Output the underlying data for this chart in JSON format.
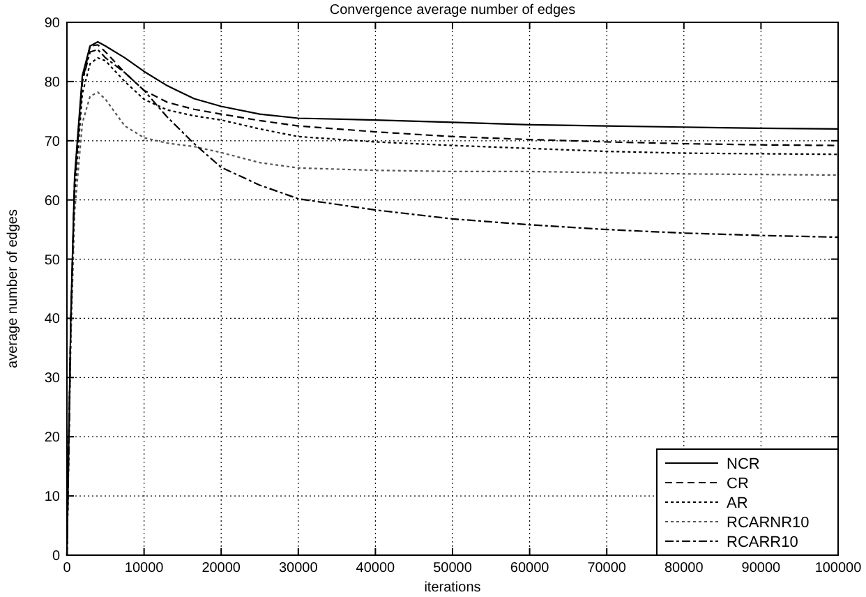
{
  "chart_data": {
    "type": "line",
    "title": "Convergence average number of edges",
    "xlabel": "iterations",
    "ylabel": "average number of edges",
    "xlim": [
      0,
      100000
    ],
    "ylim": [
      0,
      90
    ],
    "xticks": [
      0,
      10000,
      20000,
      30000,
      40000,
      50000,
      60000,
      70000,
      80000,
      90000,
      100000
    ],
    "yticks": [
      0,
      10,
      20,
      30,
      40,
      50,
      60,
      70,
      80,
      90
    ],
    "grid": true,
    "legend": "bottom right",
    "x": [
      0,
      500,
      1000,
      2000,
      3000,
      4000,
      5000,
      7500,
      10000,
      13000,
      16500,
      20000,
      25000,
      30000,
      40000,
      50000,
      60000,
      70000,
      80000,
      90000,
      100000
    ],
    "series": [
      {
        "name": "NCR",
        "color": "#000000",
        "line_style": "solid",
        "values": [
          0,
          40,
          64,
          81,
          86,
          86.7,
          86,
          84,
          81.7,
          79.3,
          77.1,
          75.8,
          74.5,
          73.8,
          73.5,
          73.1,
          72.7,
          72.5,
          72.3,
          72.1,
          72.0
        ]
      },
      {
        "name": "CR",
        "color": "#000000",
        "line_style": "dashed",
        "values": [
          0,
          39,
          63,
          80,
          86,
          86.2,
          85,
          81.5,
          78.5,
          76.5,
          75.3,
          74.5,
          73.4,
          72.5,
          71.5,
          70.7,
          70.2,
          69.8,
          69.5,
          69.3,
          69.2
        ]
      },
      {
        "name": "AR",
        "color": "#000000",
        "line_style": "dotted",
        "values": [
          0,
          38,
          61,
          78,
          83,
          84,
          83.5,
          80,
          77,
          75.2,
          74.2,
          73.5,
          72,
          70.7,
          69.8,
          69.2,
          68.7,
          68.2,
          67.9,
          67.8,
          67.7
        ]
      },
      {
        "name": "RCARNR10",
        "color": "#555555",
        "line_style": "dotted",
        "values": [
          0,
          36,
          58,
          73,
          77.5,
          78.2,
          77,
          72.5,
          70.5,
          69.6,
          69,
          68,
          66.3,
          65.4,
          65.0,
          64.8,
          64.8,
          64.6,
          64.4,
          64.3,
          64.2
        ]
      },
      {
        "name": "RCARR10",
        "color": "#000000",
        "line_style": "dashdot",
        "values": [
          0,
          39,
          63,
          80,
          85,
          85.4,
          84,
          81.5,
          78.5,
          74,
          69.5,
          65.5,
          62.5,
          60.2,
          58.3,
          56.8,
          55.8,
          55.0,
          54.4,
          54.0,
          53.7
        ]
      }
    ]
  }
}
